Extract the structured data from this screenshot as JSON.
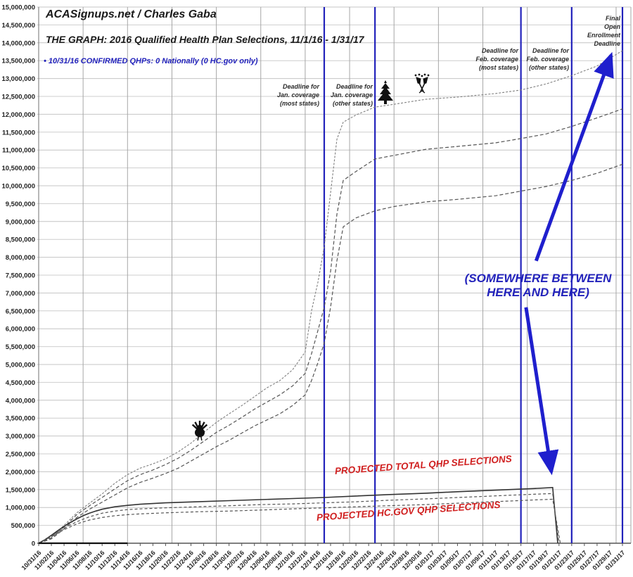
{
  "header": {
    "site": "ACASignups.net / Charles Gaba",
    "title": "THE GRAPH: 2016 Qualified Health Plan Selections, 11/1/16 - 1/31/17",
    "subtitle": "• 10/31/16 CONFIRMED QHPs: 0 Nationally (0 HC.gov only)"
  },
  "colors": {
    "blue": "#2222bb",
    "arrow_blue": "#1f1fcd",
    "red": "#d02020",
    "grid_h": "#c4c4c4",
    "grid_v": "#a6a6a6",
    "axis": "#555555",
    "curve_gray": "#808080",
    "curve_dashed": "#555555",
    "curve_solid": "#333333",
    "confirmed": "#111111"
  },
  "chart_data": {
    "type": "line",
    "title": "THE GRAPH: 2016 Qualified Health Plan Selections, 11/1/16 - 1/31/17",
    "xlabel": "",
    "ylabel": "",
    "ylim": [
      0,
      15000000
    ],
    "y_tick_step": 500000,
    "x_range_days": [
      0,
      92
    ],
    "grid": "on",
    "values_unit": "millions",
    "y_ticks": [
      "0",
      "500,000",
      "1,000,000",
      "1,500,000",
      "2,000,000",
      "2,500,000",
      "3,000,000",
      "3,500,000",
      "4,000,000",
      "4,500,000",
      "5,000,000",
      "5,500,000",
      "6,000,000",
      "6,500,000",
      "7,000,000",
      "7,500,000",
      "8,000,000",
      "8,500,000",
      "9,000,000",
      "9,500,000",
      "10,000,000",
      "10,500,000",
      "11,000,000",
      "11,500,000",
      "12,000,000",
      "12,500,000",
      "13,000,000",
      "13,500,000",
      "14,000,000",
      "14,500,000",
      "15,000,000"
    ],
    "x_ticks": [
      {
        "day": 0,
        "label": "10/31/16"
      },
      {
        "day": 2,
        "label": "11/02/16"
      },
      {
        "day": 4,
        "label": "11/04/16"
      },
      {
        "day": 6,
        "label": "11/06/16"
      },
      {
        "day": 8,
        "label": "11/08/16"
      },
      {
        "day": 10,
        "label": "11/10/16"
      },
      {
        "day": 12,
        "label": "11/12/16"
      },
      {
        "day": 14,
        "label": "11/14/16"
      },
      {
        "day": 16,
        "label": "11/16/16"
      },
      {
        "day": 18,
        "label": "11/18/16"
      },
      {
        "day": 20,
        "label": "11/20/16"
      },
      {
        "day": 22,
        "label": "11/22/16"
      },
      {
        "day": 24,
        "label": "11/24/16"
      },
      {
        "day": 26,
        "label": "11/26/16"
      },
      {
        "day": 28,
        "label": "11/28/16"
      },
      {
        "day": 30,
        "label": "11/30/16"
      },
      {
        "day": 32,
        "label": "12/02/16"
      },
      {
        "day": 34,
        "label": "12/04/16"
      },
      {
        "day": 36,
        "label": "12/06/16"
      },
      {
        "day": 38,
        "label": "12/08/16"
      },
      {
        "day": 40,
        "label": "12/10/16"
      },
      {
        "day": 42,
        "label": "12/12/16"
      },
      {
        "day": 44,
        "label": "12/14/16"
      },
      {
        "day": 46,
        "label": "12/16/16"
      },
      {
        "day": 48,
        "label": "12/18/16"
      },
      {
        "day": 50,
        "label": "12/20/16"
      },
      {
        "day": 52,
        "label": "12/22/16"
      },
      {
        "day": 54,
        "label": "12/24/16"
      },
      {
        "day": 56,
        "label": "12/26/16"
      },
      {
        "day": 58,
        "label": "12/28/16"
      },
      {
        "day": 60,
        "label": "12/30/16"
      },
      {
        "day": 62,
        "label": "01/01/17"
      },
      {
        "day": 64,
        "label": "01/03/17"
      },
      {
        "day": 66,
        "label": "01/05/17"
      },
      {
        "day": 68,
        "label": "01/07/17"
      },
      {
        "day": 70,
        "label": "01/09/17"
      },
      {
        "day": 72,
        "label": "01/11/17"
      },
      {
        "day": 74,
        "label": "01/13/17"
      },
      {
        "day": 76,
        "label": "01/15/17"
      },
      {
        "day": 78,
        "label": "01/17/17"
      },
      {
        "day": 80,
        "label": "01/19/17"
      },
      {
        "day": 82,
        "label": "01/21/17"
      },
      {
        "day": 84,
        "label": "01/23/17"
      },
      {
        "day": 86,
        "label": "01/25/17"
      },
      {
        "day": 88,
        "label": "01/27/17"
      },
      {
        "day": 90,
        "label": "01/29/17"
      },
      {
        "day": 92,
        "label": "01/31/17"
      }
    ],
    "deadlines": [
      {
        "label": "Deadline for\nJan. coverage\n(most states)",
        "date": "12/15/16",
        "day": 45
      },
      {
        "label": "Deadline for\nJan. coverage\n(other states)",
        "date": "12/23/16",
        "day": 53
      },
      {
        "label": "Deadline for\nFeb. coverage\n(most states)",
        "date": "01/15/17",
        "day": 76
      },
      {
        "label": "Deadline for\nFeb. coverage\n(other states)",
        "date": "01/23/17",
        "day": 84
      },
      {
        "label": "Final\nOpen\nEnrollment\nDeadline",
        "date": "01/31/17",
        "day": 92
      }
    ],
    "series": [
      {
        "name": "projection_total_high",
        "style": "dotted_gray",
        "points": [
          [
            0,
            0
          ],
          [
            2,
            0.18
          ],
          [
            4,
            0.5
          ],
          [
            6,
            0.85
          ],
          [
            8,
            1.12
          ],
          [
            10,
            1.38
          ],
          [
            12,
            1.68
          ],
          [
            14,
            1.92
          ],
          [
            16,
            2.1
          ],
          [
            18,
            2.22
          ],
          [
            20,
            2.36
          ],
          [
            22,
            2.56
          ],
          [
            24,
            2.8
          ],
          [
            26,
            3.1
          ],
          [
            28,
            3.38
          ],
          [
            30,
            3.62
          ],
          [
            32,
            3.85
          ],
          [
            34,
            4.1
          ],
          [
            36,
            4.35
          ],
          [
            38,
            4.55
          ],
          [
            40,
            4.85
          ],
          [
            42,
            5.35
          ],
          [
            43,
            6.5
          ],
          [
            44,
            7.3
          ],
          [
            45,
            8.3
          ],
          [
            46,
            9.8
          ],
          [
            47,
            11.3
          ],
          [
            48,
            11.78
          ],
          [
            50,
            11.98
          ],
          [
            53,
            12.2
          ],
          [
            56,
            12.28
          ],
          [
            61,
            12.42
          ],
          [
            66,
            12.48
          ],
          [
            72,
            12.58
          ],
          [
            76,
            12.68
          ],
          [
            80,
            12.85
          ],
          [
            84,
            13.08
          ],
          [
            88,
            13.35
          ],
          [
            92,
            13.78
          ]
        ]
      },
      {
        "name": "projection_total_mid",
        "style": "dashed_dark",
        "points": [
          [
            0,
            0
          ],
          [
            2,
            0.15
          ],
          [
            4,
            0.45
          ],
          [
            6,
            0.8
          ],
          [
            8,
            1.05
          ],
          [
            10,
            1.28
          ],
          [
            12,
            1.52
          ],
          [
            14,
            1.75
          ],
          [
            16,
            1.92
          ],
          [
            18,
            2.05
          ],
          [
            20,
            2.2
          ],
          [
            22,
            2.38
          ],
          [
            24,
            2.6
          ],
          [
            26,
            2.85
          ],
          [
            28,
            3.1
          ],
          [
            30,
            3.3
          ],
          [
            32,
            3.52
          ],
          [
            34,
            3.75
          ],
          [
            36,
            3.95
          ],
          [
            38,
            4.15
          ],
          [
            40,
            4.4
          ],
          [
            42,
            4.75
          ],
          [
            43,
            5.3
          ],
          [
            44,
            5.95
          ],
          [
            45,
            6.6
          ],
          [
            46,
            7.6
          ],
          [
            47,
            9.2
          ],
          [
            48,
            10.15
          ],
          [
            50,
            10.4
          ],
          [
            53,
            10.75
          ],
          [
            56,
            10.85
          ],
          [
            61,
            11.02
          ],
          [
            66,
            11.1
          ],
          [
            72,
            11.2
          ],
          [
            76,
            11.32
          ],
          [
            80,
            11.45
          ],
          [
            84,
            11.66
          ],
          [
            88,
            11.9
          ],
          [
            92,
            12.15
          ]
        ]
      },
      {
        "name": "projection_hcgov",
        "style": "dashed_dark",
        "points": [
          [
            0,
            0
          ],
          [
            2,
            0.12
          ],
          [
            4,
            0.4
          ],
          [
            6,
            0.72
          ],
          [
            8,
            0.95
          ],
          [
            10,
            1.15
          ],
          [
            12,
            1.35
          ],
          [
            14,
            1.55
          ],
          [
            16,
            1.7
          ],
          [
            18,
            1.82
          ],
          [
            20,
            1.95
          ],
          [
            22,
            2.1
          ],
          [
            24,
            2.3
          ],
          [
            26,
            2.5
          ],
          [
            28,
            2.7
          ],
          [
            30,
            2.88
          ],
          [
            32,
            3.08
          ],
          [
            34,
            3.28
          ],
          [
            36,
            3.45
          ],
          [
            38,
            3.62
          ],
          [
            40,
            3.85
          ],
          [
            42,
            4.15
          ],
          [
            43,
            4.55
          ],
          [
            44,
            5.05
          ],
          [
            45,
            5.6
          ],
          [
            46,
            6.6
          ],
          [
            47,
            7.9
          ],
          [
            48,
            8.85
          ],
          [
            50,
            9.1
          ],
          [
            53,
            9.3
          ],
          [
            56,
            9.42
          ],
          [
            61,
            9.55
          ],
          [
            66,
            9.62
          ],
          [
            72,
            9.72
          ],
          [
            76,
            9.85
          ],
          [
            80,
            9.98
          ],
          [
            84,
            10.15
          ],
          [
            88,
            10.35
          ],
          [
            92,
            10.6
          ]
        ]
      },
      {
        "name": "projected_total_qhp_crash",
        "style": "solid_dark",
        "label": "PROJECTED TOTAL QHP SELECTIONS",
        "points": [
          [
            0,
            0
          ],
          [
            1,
            0.1
          ],
          [
            2,
            0.22
          ],
          [
            3,
            0.35
          ],
          [
            4,
            0.47
          ],
          [
            5,
            0.58
          ],
          [
            6,
            0.68
          ],
          [
            7,
            0.77
          ],
          [
            8,
            0.84
          ],
          [
            9,
            0.9
          ],
          [
            10,
            0.95
          ],
          [
            12,
            1.02
          ],
          [
            14,
            1.06
          ],
          [
            16,
            1.09
          ],
          [
            20,
            1.13
          ],
          [
            25,
            1.16
          ],
          [
            30,
            1.19
          ],
          [
            35,
            1.22
          ],
          [
            40,
            1.25
          ],
          [
            45,
            1.28
          ],
          [
            50,
            1.32
          ],
          [
            55,
            1.36
          ],
          [
            61,
            1.4
          ],
          [
            66,
            1.44
          ],
          [
            70,
            1.47
          ],
          [
            74,
            1.5
          ],
          [
            78,
            1.53
          ],
          [
            81,
            1.56
          ],
          [
            81.8,
            0
          ]
        ]
      },
      {
        "name": "projected_hcgov_qhp_crash_high",
        "style": "dashed_mid",
        "label": "PROJECTED HC.GOV QHP SELECTIONS",
        "points": [
          [
            0,
            0
          ],
          [
            2,
            0.2
          ],
          [
            4,
            0.42
          ],
          [
            6,
            0.6
          ],
          [
            8,
            0.74
          ],
          [
            10,
            0.84
          ],
          [
            12,
            0.9
          ],
          [
            14,
            0.94
          ],
          [
            16,
            0.96
          ],
          [
            20,
            0.99
          ],
          [
            25,
            1.02
          ],
          [
            30,
            1.05
          ],
          [
            35,
            1.08
          ],
          [
            40,
            1.1
          ],
          [
            45,
            1.13
          ],
          [
            50,
            1.16
          ],
          [
            55,
            1.2
          ],
          [
            61,
            1.24
          ],
          [
            66,
            1.28
          ],
          [
            70,
            1.31
          ],
          [
            74,
            1.34
          ],
          [
            78,
            1.37
          ],
          [
            81,
            1.39
          ],
          [
            82,
            0
          ]
        ]
      },
      {
        "name": "projected_hcgov_qhp_crash_low",
        "style": "dashed_mid",
        "points": [
          [
            0,
            0
          ],
          [
            2,
            0.18
          ],
          [
            4,
            0.38
          ],
          [
            6,
            0.54
          ],
          [
            8,
            0.65
          ],
          [
            10,
            0.72
          ],
          [
            12,
            0.77
          ],
          [
            14,
            0.8
          ],
          [
            16,
            0.82
          ],
          [
            20,
            0.85
          ],
          [
            25,
            0.88
          ],
          [
            30,
            0.9
          ],
          [
            35,
            0.93
          ],
          [
            40,
            0.96
          ],
          [
            45,
            0.99
          ],
          [
            50,
            1.02
          ],
          [
            55,
            1.05
          ],
          [
            61,
            1.08
          ],
          [
            66,
            1.12
          ],
          [
            70,
            1.15
          ],
          [
            74,
            1.18
          ],
          [
            78,
            1.21
          ],
          [
            81,
            1.23
          ],
          [
            82.2,
            0
          ]
        ]
      },
      {
        "name": "confirmed_qhps_zero",
        "style": "solid_black",
        "points": [
          [
            0,
            0
          ],
          [
            14,
            0
          ]
        ]
      }
    ],
    "annotations": {
      "note": "(SOMEWHERE BETWEEN\nHERE AND HERE)",
      "projected_total_label": "PROJECTED TOTAL QHP SELECTIONS",
      "projected_hcgov_label": "PROJECTED HC.GOV QHP SELECTIONS",
      "arrows": [
        {
          "name": "arrow-to-final-deadline",
          "from": [
            78.4,
            7.9
          ],
          "to": [
            90.2,
            13.65
          ]
        },
        {
          "name": "arrow-to-crash-point",
          "from": [
            76.8,
            6.6
          ],
          "to": [
            80.8,
            2.0
          ]
        }
      ],
      "icons": [
        {
          "name": "turkey",
          "meaning": "Thanksgiving"
        },
        {
          "name": "christmas-tree",
          "meaning": "Christmas"
        },
        {
          "name": "champagne-glasses",
          "meaning": "New Year"
        }
      ]
    }
  }
}
